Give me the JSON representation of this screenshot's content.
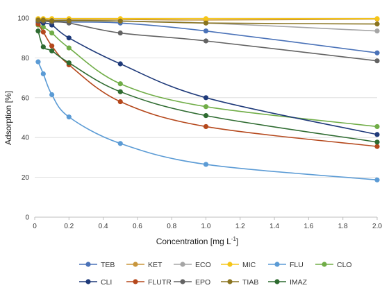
{
  "chart_data": {
    "type": "line",
    "xlabel": "Concentration [mg L",
    "xlabel_sup": "-1",
    "xlabel_end": "]",
    "ylabel": "Adsorption [%]",
    "xlim": [
      0,
      2.0
    ],
    "ylim": [
      0,
      100
    ],
    "x_ticks": [
      "0",
      "0.2",
      "0.4",
      "0.6",
      "0.8",
      "1.0",
      "1.2",
      "1.4",
      "1.6",
      "1.8",
      "2.0"
    ],
    "y_ticks": [
      "0",
      "20",
      "40",
      "60",
      "80",
      "100"
    ],
    "grid": "horizontal",
    "legend_position": "bottom",
    "x": [
      0.02,
      0.05,
      0.1,
      0.2,
      0.5,
      1.0,
      2.0
    ],
    "series": [
      {
        "name": "TEB",
        "color": "#4a72b8",
        "values": [
          99,
          99,
          98.5,
          98,
          97.5,
          93.5,
          82.5
        ]
      },
      {
        "name": "KET",
        "color": "#c8963c",
        "values": [
          99.5,
          99.5,
          99.3,
          99.3,
          99.3,
          99,
          99.5
        ]
      },
      {
        "name": "ECO",
        "color": "#a5a5a5",
        "values": [
          99.5,
          99.5,
          99.5,
          99,
          98.5,
          97.5,
          93.5
        ]
      },
      {
        "name": "MIC",
        "color": "#f5c518",
        "values": [
          99.7,
          99.7,
          99.7,
          99.7,
          99.7,
          99.7,
          99.7
        ]
      },
      {
        "name": "FLU",
        "color": "#5b9bd5",
        "values": [
          78,
          72,
          61.5,
          50.3,
          37,
          26.5,
          18.7
        ]
      },
      {
        "name": "CLO",
        "color": "#70ad47",
        "values": [
          96.5,
          95.5,
          92.5,
          85,
          67,
          55.5,
          45.5
        ]
      },
      {
        "name": "CLI",
        "color": "#1f3a7a",
        "values": [
          98,
          97.5,
          96.5,
          90,
          77,
          60,
          41.5
        ]
      },
      {
        "name": "FLUTR",
        "color": "#b5481c",
        "values": [
          97,
          93,
          86,
          76.5,
          58,
          45.5,
          35.5
        ]
      },
      {
        "name": "EPO",
        "color": "#636363",
        "values": [
          98.5,
          98.5,
          98,
          97.5,
          92.5,
          88.5,
          78.5
        ]
      },
      {
        "name": "TIAB",
        "color": "#8a7420",
        "values": [
          99,
          99,
          98.7,
          98.7,
          98.5,
          97.5,
          97
        ]
      },
      {
        "name": "IMAZ",
        "color": "#2e6b30",
        "values": [
          93.5,
          85.5,
          83.5,
          77.5,
          63,
          51,
          37.7
        ]
      }
    ]
  }
}
